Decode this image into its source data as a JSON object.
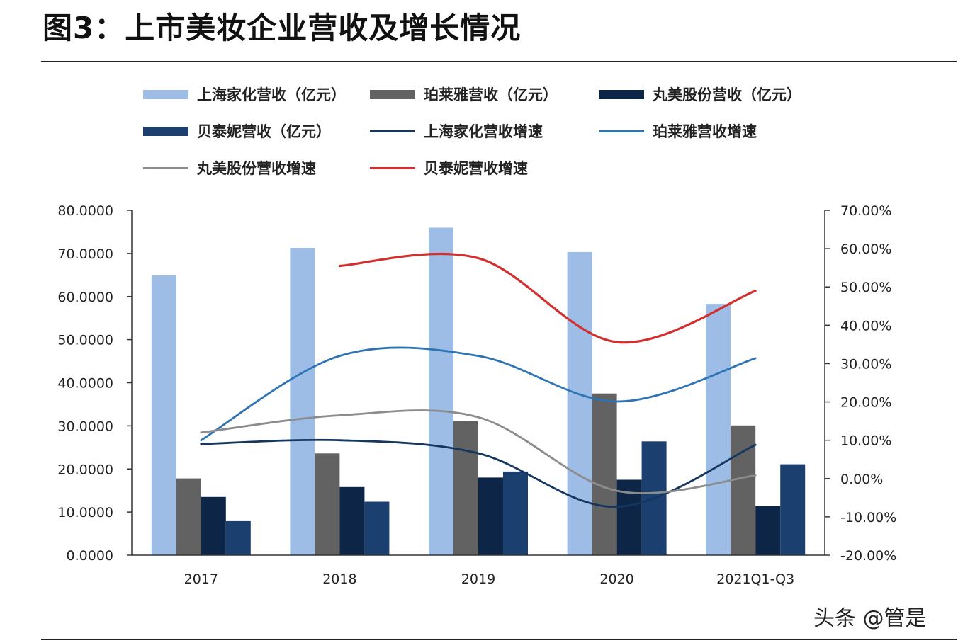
{
  "title": "图3：上市美妆企业营收及增长情况",
  "watermark": "头条 @管是",
  "chart_data": {
    "type": "bar",
    "title": "图3：上市美妆企业营收及增长情况",
    "categories": [
      "2017",
      "2018",
      "2019",
      "2020",
      "2021Q1-Q3"
    ],
    "y_left": {
      "range": [
        0,
        80
      ],
      "ticks": [
        "0.0000",
        "10.0000",
        "20.0000",
        "30.0000",
        "40.0000",
        "50.0000",
        "60.0000",
        "70.0000",
        "80.0000"
      ]
    },
    "y_right": {
      "range": [
        -20,
        70
      ],
      "ticks": [
        "-20.00%",
        "-10.00%",
        "0.00%",
        "10.00%",
        "20.00%",
        "30.00%",
        "40.00%",
        "50.00%",
        "60.00%",
        "70.00%"
      ]
    },
    "bar_series": [
      {
        "name": "上海家化营收（亿元）",
        "color": "#9dbde6",
        "values": [
          64.9,
          71.3,
          75.97,
          70.32,
          58.3
        ]
      },
      {
        "name": "珀莱雅营收（亿元）",
        "color": "#626262",
        "values": [
          17.8,
          23.6,
          31.2,
          37.5,
          30.1
        ]
      },
      {
        "name": "丸美股份营收（亿元）",
        "color": "#0d2546",
        "values": [
          13.5,
          15.8,
          18.0,
          17.5,
          11.4
        ]
      },
      {
        "name": "贝泰妮营收（亿元）",
        "color": "#1b3f6e",
        "values": [
          7.9,
          12.4,
          19.4,
          26.4,
          21.1
        ]
      }
    ],
    "line_series": [
      {
        "name": "上海家化营收增速",
        "color": "#14365f",
        "values": [
          9.0,
          10.0,
          6.6,
          -7.4,
          8.8
        ]
      },
      {
        "name": "珀莱雅营收增速",
        "color": "#2e74b5",
        "values": [
          10.0,
          32.0,
          32.0,
          20.1,
          31.4
        ]
      },
      {
        "name": "丸美股份营收增速",
        "color": "#8c8c8c",
        "values": [
          12.0,
          16.5,
          16.0,
          -3.2,
          0.8
        ]
      },
      {
        "name": "贝泰妮营收增速",
        "color": "#d42f2f",
        "values": [
          null,
          55.5,
          57.5,
          35.6,
          49.0
        ]
      }
    ],
    "grid": false,
    "legend_position": "top"
  }
}
